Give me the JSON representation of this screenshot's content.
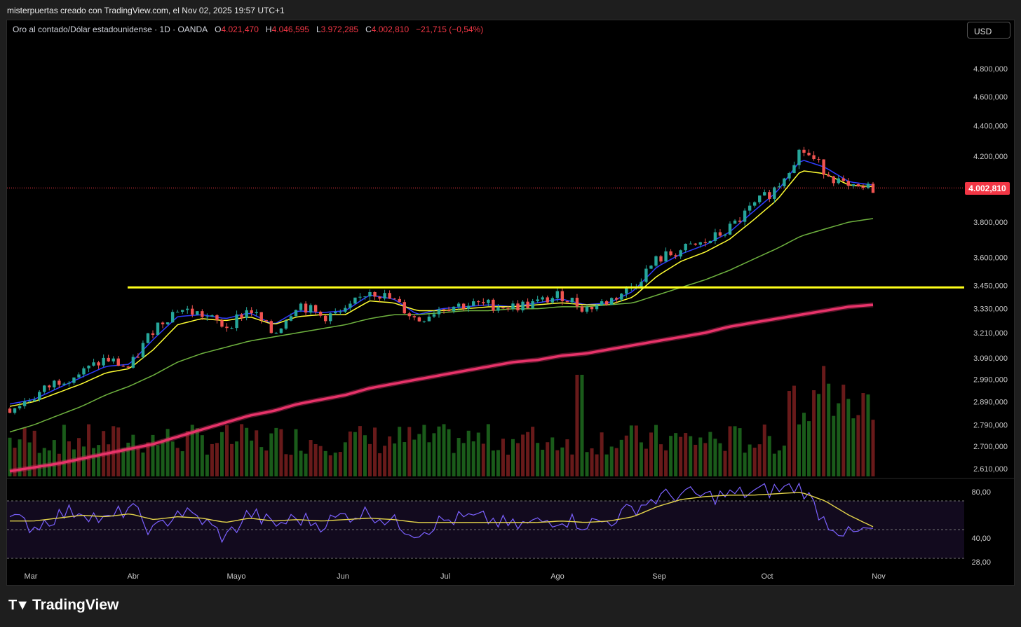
{
  "header": {
    "credit": "misterpuertas creado con TradingView.com, el Nov 02, 2025 19:57 UTC+1"
  },
  "symbol": {
    "name": "Oro al contado/Dólar estadounidense · 1D · OANDA",
    "open_label": "O",
    "open": "4.021,470",
    "high_label": "H",
    "high": "4.046,595",
    "low_label": "L",
    "low": "3.972,285",
    "close_label": "C",
    "close": "4.002,810",
    "change": "−21,715 (−0,54%)"
  },
  "currency": "USD",
  "last_price_label": "4.002,810",
  "brand": {
    "name": "TradingView",
    "icon": "tradingview-logo-icon"
  },
  "colors": {
    "up": "#26a69a",
    "down": "#ef5350",
    "ma_fast": "#2f3dff",
    "ma_mid": "#ffff33",
    "ma_slow": "#6fb33f",
    "ma_long": "#e8336a",
    "resistance": "#ffff1a",
    "rsi": "#7b61ff",
    "rsi_ma": "#e3d34a",
    "last_price": "#f23645"
  },
  "chart_data": [
    {
      "type": "candlestick",
      "title": "Oro al contado/Dólar estadounidense · 1D · OANDA",
      "x_ticks": [
        "Mar",
        "Abr",
        "Mayo",
        "Jun",
        "Jul",
        "Ago",
        "Sep",
        "Oct",
        "Nov"
      ],
      "y_ticks": [
        "4.800,000",
        "4.600,000",
        "4.400,000",
        "4.200,000",
        "3.800,000",
        "3.600,000",
        "3.450,000",
        "3.330,000",
        "3.210,000",
        "3.090,000",
        "2.990,000",
        "2.890,000",
        "2.790,000",
        "2.700,000",
        "2.610,000"
      ],
      "y_tick_values": [
        4800,
        4600,
        4400,
        4200,
        3800,
        3600,
        3450,
        3330,
        3210,
        3090,
        2990,
        2890,
        2790,
        2700,
        2610
      ],
      "y_scale": "log",
      "last_price": 4002.81,
      "resistance_level": 3440,
      "close_series_approx": {
        "dates": [
          "2025-02-24",
          "2025-03-03",
          "2025-03-10",
          "2025-03-17",
          "2025-03-24",
          "2025-03-31",
          "2025-04-07",
          "2025-04-14",
          "2025-04-21",
          "2025-04-28",
          "2025-05-05",
          "2025-05-12",
          "2025-05-19",
          "2025-05-26",
          "2025-06-02",
          "2025-06-09",
          "2025-06-16",
          "2025-06-23",
          "2025-06-30",
          "2025-07-07",
          "2025-07-14",
          "2025-07-21",
          "2025-07-28",
          "2025-08-04",
          "2025-08-11",
          "2025-08-18",
          "2025-08-25",
          "2025-09-01",
          "2025-09-08",
          "2025-09-15",
          "2025-09-22",
          "2025-09-29",
          "2025-10-06",
          "2025-10-13",
          "2025-10-20",
          "2025-10-27",
          "2025-10-31"
        ],
        "values": [
          2860,
          2910,
          2985,
          3020,
          3085,
          3040,
          3235,
          3330,
          3300,
          3240,
          3330,
          3200,
          3360,
          3290,
          3310,
          3430,
          3370,
          3270,
          3340,
          3350,
          3350,
          3340,
          3360,
          3400,
          3330,
          3370,
          3450,
          3590,
          3640,
          3680,
          3760,
          3890,
          4010,
          4250,
          4110,
          3990,
          4002.81
        ]
      },
      "moving_averages": [
        {
          "color": "#2f3dff",
          "values": [
            2880,
            2900,
            2950,
            3000,
            3050,
            3060,
            3180,
            3290,
            3300,
            3280,
            3310,
            3250,
            3320,
            3310,
            3320,
            3400,
            3380,
            3300,
            3330,
            3340,
            3350,
            3340,
            3360,
            3380,
            3350,
            3360,
            3420,
            3550,
            3620,
            3670,
            3740,
            3860,
            3980,
            4180,
            4130,
            4040,
            4020
          ]
        },
        {
          "color": "#ffff33",
          "values": [
            2870,
            2890,
            2930,
            2970,
            3020,
            3040,
            3130,
            3250,
            3280,
            3270,
            3290,
            3250,
            3290,
            3300,
            3300,
            3370,
            3360,
            3320,
            3320,
            3330,
            3340,
            3340,
            3350,
            3360,
            3350,
            3350,
            3390,
            3500,
            3580,
            3630,
            3700,
            3810,
            3930,
            4110,
            4090,
            4020,
            4010
          ]
        },
        {
          "color": "#6fb33f",
          "values": [
            2760,
            2790,
            2830,
            2870,
            2920,
            2960,
            3010,
            3070,
            3110,
            3140,
            3170,
            3190,
            3210,
            3230,
            3250,
            3280,
            3300,
            3300,
            3310,
            3320,
            3320,
            3330,
            3330,
            3340,
            3340,
            3350,
            3360,
            3400,
            3440,
            3480,
            3530,
            3590,
            3650,
            3720,
            3760,
            3800,
            3820
          ]
        },
        {
          "color": "#e8336a",
          "values": [
            2600,
            2615,
            2630,
            2650,
            2670,
            2690,
            2710,
            2740,
            2770,
            2800,
            2830,
            2850,
            2880,
            2900,
            2920,
            2950,
            2970,
            2990,
            3010,
            3030,
            3050,
            3070,
            3080,
            3100,
            3110,
            3130,
            3150,
            3170,
            3190,
            3210,
            3240,
            3260,
            3280,
            3300,
            3320,
            3340,
            3350
          ]
        }
      ]
    },
    {
      "type": "line",
      "title": "RSI",
      "y_ticks": [
        "80,00",
        "40,00",
        "28,00"
      ],
      "y_tick_values": [
        80,
        40,
        28
      ],
      "overbought": 70,
      "oversold": 30,
      "rsi_values_approx": [
        58,
        52,
        60,
        64,
        55,
        66,
        48,
        63,
        57,
        44,
        62,
        53,
        58,
        54,
        60,
        62,
        55,
        48,
        56,
        58,
        57,
        52,
        55,
        58,
        54,
        56,
        65,
        72,
        75,
        73,
        74,
        76,
        78,
        80,
        56,
        46,
        50
      ],
      "rsi_ma_values_approx": [
        56,
        56,
        58,
        60,
        59,
        61,
        57,
        59,
        58,
        55,
        58,
        56,
        57,
        56,
        57,
        58,
        57,
        55,
        55,
        55,
        55,
        55,
        55,
        56,
        55,
        56,
        59,
        66,
        71,
        73,
        74,
        74,
        75,
        76,
        70,
        60,
        52
      ]
    }
  ]
}
